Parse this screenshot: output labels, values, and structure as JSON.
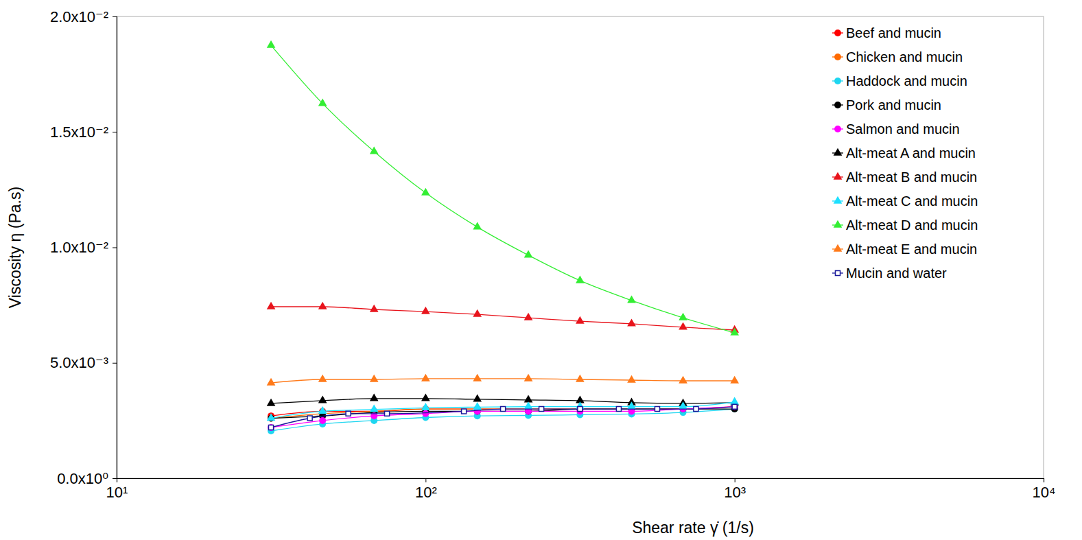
{
  "chart_data": {
    "type": "line",
    "x_label": "Shear rate γ̇ (1/s)",
    "y_label": "Viscosity η (Pa.s)",
    "log": "x",
    "legend": "top-right",
    "xlim": [
      10,
      10000
    ],
    "xticks": [
      {
        "value": 10,
        "label": "10¹"
      },
      {
        "value": 100,
        "label": "10²"
      },
      {
        "value": 1000,
        "label": "10³"
      },
      {
        "value": 10000,
        "label": "10⁴"
      }
    ],
    "ylim": [
      0,
      0.02
    ],
    "yticks": [
      {
        "value": 0,
        "label": "0.0x10⁰"
      },
      {
        "value": 0.005,
        "label": "5.0x10⁻³"
      },
      {
        "value": 0.01,
        "label": "1.0x10⁻²"
      },
      {
        "value": 0.015,
        "label": "1.5x10⁻²"
      },
      {
        "value": 0.02,
        "label": "2.0x10⁻²"
      }
    ],
    "series": [
      {
        "name": "Beef and mucin",
        "color": "#ff0000",
        "marker": "circle",
        "x": [
          31.6,
          46.4,
          68.1,
          100,
          147,
          215,
          316,
          464,
          681,
          1000
        ],
        "values": [
          0.0027,
          0.0029,
          0.0029,
          0.003,
          0.003,
          0.003,
          0.003,
          0.003,
          0.003,
          0.0031
        ]
      },
      {
        "name": "Chicken and mucin",
        "color": "#ff6a00",
        "marker": "circle",
        "x": [
          31.6,
          46.4,
          68.1,
          100,
          147,
          215,
          316,
          464,
          681,
          1000
        ],
        "values": [
          0.0026,
          0.0028,
          0.0029,
          0.003,
          0.003,
          0.003,
          0.003,
          0.003,
          0.003,
          0.0031
        ]
      },
      {
        "name": "Haddock and mucin",
        "color": "#1ed6f0",
        "marker": "circle",
        "x": [
          31.6,
          46.4,
          68.1,
          100,
          147,
          215,
          316,
          464,
          681,
          1000
        ],
        "values": [
          0.00205,
          0.00235,
          0.0025,
          0.00263,
          0.0027,
          0.00272,
          0.00275,
          0.00278,
          0.00285,
          0.003
        ]
      },
      {
        "name": "Pork and mucin",
        "color": "#000000",
        "marker": "circle",
        "x": [
          31.6,
          46.4,
          68.1,
          100,
          147,
          215,
          316,
          464,
          681,
          1000
        ],
        "values": [
          0.0026,
          0.0027,
          0.00285,
          0.0029,
          0.0029,
          0.0029,
          0.003,
          0.003,
          0.003,
          0.003
        ]
      },
      {
        "name": "Salmon and mucin",
        "color": "#ff00ff",
        "marker": "circle",
        "x": [
          31.6,
          46.4,
          68.1,
          100,
          147,
          215,
          316,
          464,
          681,
          1000
        ],
        "values": [
          0.0022,
          0.0025,
          0.0027,
          0.0028,
          0.0029,
          0.0029,
          0.0029,
          0.0029,
          0.003,
          0.0031
        ]
      },
      {
        "name": "Alt-meat A and mucin",
        "color": "#000000",
        "marker": "triangle",
        "x": [
          31.6,
          46.4,
          68.1,
          100,
          147,
          215,
          316,
          464,
          681,
          1000
        ],
        "values": [
          0.00324,
          0.00336,
          0.00345,
          0.00345,
          0.00342,
          0.00339,
          0.00336,
          0.00327,
          0.00324,
          0.00327
        ]
      },
      {
        "name": "Alt-meat B and mucin",
        "color": "#e8141c",
        "marker": "triangle",
        "x": [
          31.6,
          46.4,
          68.1,
          100,
          147,
          215,
          316,
          464,
          681,
          1000
        ],
        "values": [
          0.00743,
          0.00743,
          0.00731,
          0.00722,
          0.0071,
          0.00695,
          0.0068,
          0.00669,
          0.00654,
          0.00642
        ]
      },
      {
        "name": "Alt-meat C and mucin",
        "color": "#1ee0ff",
        "marker": "triangle",
        "x": [
          31.6,
          46.4,
          68.1,
          100,
          147,
          215,
          316,
          464,
          681,
          1000
        ],
        "values": [
          0.0026,
          0.0029,
          0.00298,
          0.00305,
          0.00308,
          0.0031,
          0.0031,
          0.0031,
          0.0031,
          0.0033
        ]
      },
      {
        "name": "Alt-meat D and mucin",
        "color": "#33ee33",
        "marker": "triangle",
        "x": [
          31.6,
          46.4,
          68.1,
          100,
          147,
          215,
          316,
          464,
          681,
          1000
        ],
        "values": [
          0.01875,
          0.01623,
          0.01415,
          0.01236,
          0.01088,
          0.00966,
          0.00856,
          0.0077,
          0.00695,
          0.0063
        ]
      },
      {
        "name": "Alt-meat E and mucin",
        "color": "#ff7a1a",
        "marker": "triangle",
        "x": [
          31.6,
          46.4,
          68.1,
          100,
          147,
          215,
          316,
          464,
          681,
          1000
        ],
        "values": [
          0.00413,
          0.00428,
          0.00428,
          0.00431,
          0.00431,
          0.00431,
          0.00428,
          0.00425,
          0.00422,
          0.00422
        ]
      },
      {
        "name": "Mucin and water",
        "color": "#1a1a9a",
        "marker": "open-square",
        "x": [
          31.6,
          42.2,
          56.2,
          75,
          133,
          178,
          237,
          316,
          422,
          562,
          750,
          1000
        ],
        "values": [
          0.0022,
          0.0026,
          0.0028,
          0.0028,
          0.0029,
          0.003,
          0.003,
          0.003,
          0.003,
          0.003,
          0.003,
          0.0031
        ]
      }
    ]
  }
}
